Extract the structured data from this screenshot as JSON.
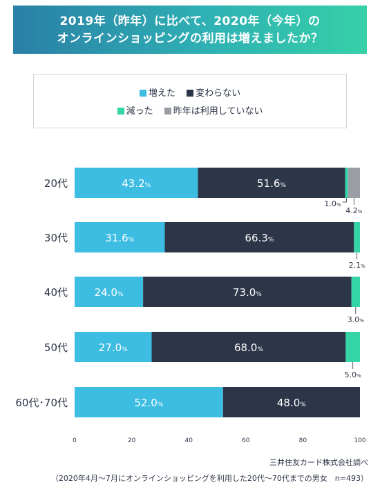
{
  "title": {
    "line1": "2019年（昨年）に比べて、2020年（今年）の",
    "line2": "オンラインショッピングの利用は増えましたか？"
  },
  "legend": [
    {
      "label": "増えた",
      "color": "#3ebde3"
    },
    {
      "label": "変わらない",
      "color": "#2d3549"
    },
    {
      "label": "減った",
      "color": "#35d4a7"
    },
    {
      "label": "昨年は利用していない",
      "color": "#9a9ea4"
    }
  ],
  "source": {
    "line1": "三井住友カード株式会社調べ",
    "line2": "（2020年4月～7月にオンラインショッピングを利用した20代～70代までの男女　n=493）"
  },
  "chart_data": {
    "type": "bar",
    "orientation": "horizontal",
    "stacked": true,
    "categories": [
      "20代",
      "30代",
      "40代",
      "50代",
      "60代･70代"
    ],
    "series": [
      {
        "name": "増えた",
        "values": [
          43.2,
          31.6,
          24.0,
          27.0,
          52.0
        ],
        "color": "#3ebde3"
      },
      {
        "name": "変わらない",
        "values": [
          51.6,
          66.3,
          73.0,
          68.0,
          48.0
        ],
        "color": "#2d3549"
      },
      {
        "name": "減った",
        "values": [
          1.0,
          2.1,
          3.0,
          5.0,
          0
        ],
        "color": "#35d4a7"
      },
      {
        "name": "昨年は利用していない",
        "values": [
          4.2,
          0,
          0,
          0,
          0
        ],
        "color": "#9a9ea4"
      }
    ],
    "xlim": [
      0,
      100
    ],
    "xticks": [
      0,
      20,
      40,
      60,
      80,
      100
    ],
    "value_suffix": "%",
    "grid": false
  }
}
